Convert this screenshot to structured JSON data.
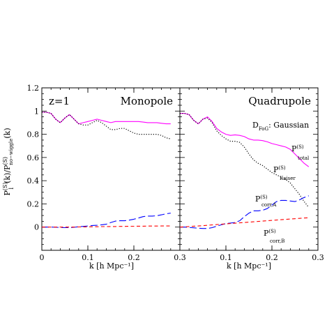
{
  "figure": {
    "ylabel_main": "P",
    "ylabel_sup": "(S)",
    "ylabel_sub": "l",
    "ylabel_rest": "(k)/P",
    "ylabel_sup2": "(S)",
    "ylabel_sub2": "no−wiggle",
    "ylabel_tail": "(k)",
    "xlabel": "k [h Mpc⁻¹]"
  },
  "colors": {
    "total": "#ff00ff",
    "kaiser": "#000000",
    "corrA": "#0000ff",
    "corrB": "#ff0000"
  },
  "chart_data": [
    {
      "type": "line",
      "title": "Monopole",
      "redshift_label": "z=1",
      "xlim": [
        0,
        0.3
      ],
      "ylim": [
        -0.2,
        1.2
      ],
      "xticks": [
        0,
        0.1,
        0.2,
        0.3
      ],
      "xtick_labels": [
        "0",
        "0.1",
        "0.2",
        "0.3"
      ],
      "yticks": [
        0,
        0.2,
        0.4,
        0.6,
        0.8,
        1.0,
        1.2
      ],
      "ytick_labels": [
        "0",
        "0.2",
        "0.4",
        "0.6",
        "0.8",
        "1",
        "1.2"
      ],
      "x": [
        0.0,
        0.01,
        0.02,
        0.03,
        0.04,
        0.05,
        0.06,
        0.07,
        0.08,
        0.09,
        0.1,
        0.11,
        0.12,
        0.13,
        0.14,
        0.15,
        0.16,
        0.17,
        0.18,
        0.19,
        0.2,
        0.21,
        0.22,
        0.23,
        0.24,
        0.25,
        0.26,
        0.27,
        0.28
      ],
      "series": [
        {
          "key": "total",
          "style": "solid",
          "values": [
            0.99,
            0.99,
            0.98,
            0.93,
            0.9,
            0.94,
            0.97,
            0.93,
            0.89,
            0.9,
            0.91,
            0.92,
            0.93,
            0.92,
            0.91,
            0.9,
            0.91,
            0.91,
            0.91,
            0.91,
            0.91,
            0.91,
            0.905,
            0.9,
            0.9,
            0.9,
            0.895,
            0.89,
            0.89
          ]
        },
        {
          "key": "kaiser",
          "style": "dotted",
          "values": [
            0.99,
            0.99,
            0.98,
            0.93,
            0.9,
            0.94,
            0.97,
            0.93,
            0.89,
            0.88,
            0.88,
            0.9,
            0.92,
            0.9,
            0.87,
            0.84,
            0.84,
            0.85,
            0.85,
            0.83,
            0.81,
            0.8,
            0.8,
            0.8,
            0.8,
            0.8,
            0.79,
            0.77,
            0.76
          ]
        },
        {
          "key": "corrA",
          "style": "longdash",
          "values": [
            0.0,
            0.0,
            0.0,
            -0.002,
            -0.003,
            -0.005,
            -0.005,
            -0.002,
            0.003,
            0.006,
            0.01,
            0.014,
            0.016,
            0.02,
            0.025,
            0.04,
            0.052,
            0.055,
            0.055,
            0.06,
            0.068,
            0.078,
            0.09,
            0.095,
            0.095,
            0.098,
            0.106,
            0.115,
            0.12
          ]
        },
        {
          "key": "corrB",
          "style": "shortdash",
          "values": [
            0.0,
            0.0,
            0.0,
            0.0,
            0.0,
            0.0,
            0.0,
            0.0,
            0.001,
            0.002,
            0.002,
            0.003,
            0.003,
            0.004,
            0.004,
            0.005,
            0.005,
            0.006,
            0.006,
            0.007,
            0.007,
            0.008,
            0.008,
            0.009,
            0.009,
            0.009,
            0.01,
            0.01,
            0.01
          ]
        }
      ]
    },
    {
      "type": "line",
      "title": "Quadrupole",
      "dfog_label_main": "D",
      "dfog_label_sub": "FoG",
      "dfog_label_rest": ": Gaussian",
      "xlim": [
        0,
        0.3
      ],
      "ylim": [
        -0.2,
        1.2
      ],
      "xticks": [
        0.1,
        0.2,
        0.3
      ],
      "xtick_labels": [
        "0.1",
        "0.2",
        "0.3"
      ],
      "x": [
        0.0,
        0.01,
        0.02,
        0.03,
        0.04,
        0.05,
        0.06,
        0.07,
        0.08,
        0.09,
        0.1,
        0.11,
        0.12,
        0.13,
        0.14,
        0.15,
        0.16,
        0.17,
        0.18,
        0.19,
        0.2,
        0.21,
        0.22,
        0.23,
        0.24,
        0.25,
        0.26,
        0.27,
        0.28
      ],
      "series": [
        {
          "key": "total",
          "style": "solid",
          "label": "P",
          "label_sup": "(S)",
          "label_sub": "total",
          "values": [
            0.98,
            0.98,
            0.97,
            0.92,
            0.89,
            0.93,
            0.95,
            0.91,
            0.85,
            0.82,
            0.8,
            0.79,
            0.795,
            0.79,
            0.78,
            0.76,
            0.75,
            0.75,
            0.745,
            0.735,
            0.72,
            0.71,
            0.7,
            0.69,
            0.67,
            0.63,
            0.59,
            0.55,
            0.52
          ]
        },
        {
          "key": "kaiser",
          "style": "dotted",
          "label": "P",
          "label_sup": "(S)",
          "label_sub": "Kaiser",
          "values": [
            0.98,
            0.98,
            0.97,
            0.92,
            0.89,
            0.93,
            0.94,
            0.9,
            0.83,
            0.79,
            0.76,
            0.74,
            0.74,
            0.73,
            0.69,
            0.63,
            0.58,
            0.55,
            0.53,
            0.5,
            0.47,
            0.45,
            0.43,
            0.41,
            0.38,
            0.33,
            0.28,
            0.22,
            0.17
          ]
        },
        {
          "key": "corrA",
          "style": "longdash",
          "label": "P",
          "label_sup": "(S)",
          "label_sub": "corr,A",
          "values": [
            0.0,
            0.0,
            -0.003,
            -0.006,
            -0.01,
            -0.012,
            -0.012,
            -0.005,
            0.008,
            0.02,
            0.03,
            0.035,
            0.04,
            0.055,
            0.09,
            0.12,
            0.14,
            0.14,
            0.145,
            0.16,
            0.19,
            0.22,
            0.23,
            0.23,
            0.225,
            0.22,
            0.235,
            0.255,
            0.27
          ]
        },
        {
          "key": "corrB",
          "style": "shortdash",
          "label": "P",
          "label_sup": "(S)",
          "label_sub": "corr,B",
          "values": [
            0.0,
            0.002,
            0.005,
            0.008,
            0.01,
            0.013,
            0.016,
            0.019,
            0.022,
            0.025,
            0.028,
            0.031,
            0.034,
            0.037,
            0.04,
            0.043,
            0.046,
            0.049,
            0.052,
            0.055,
            0.058,
            0.061,
            0.064,
            0.067,
            0.07,
            0.072,
            0.075,
            0.078,
            0.08
          ]
        }
      ]
    }
  ]
}
